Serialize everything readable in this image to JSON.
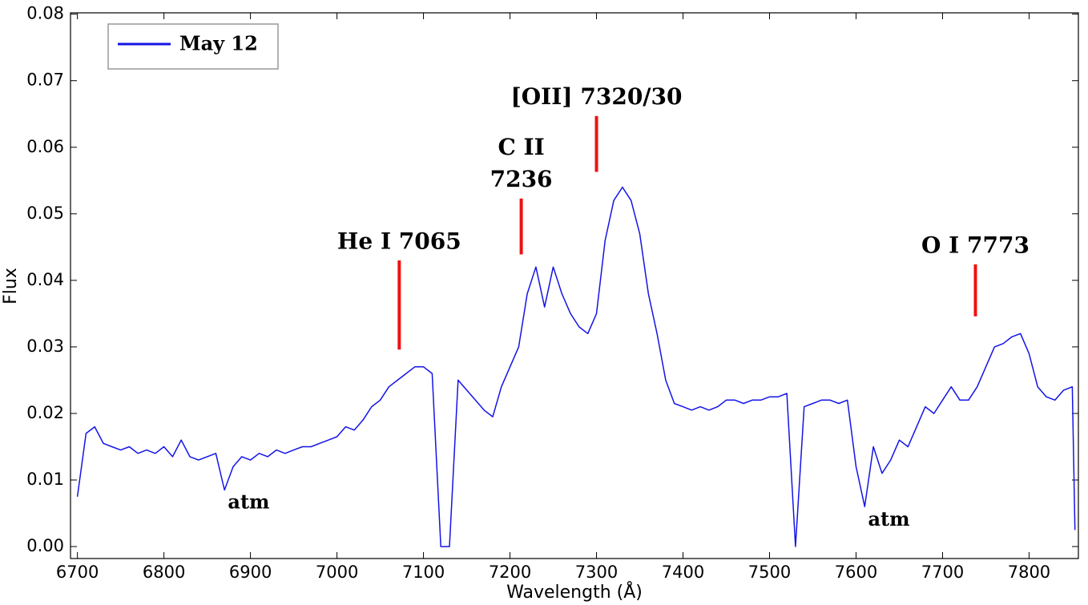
{
  "chart_data": {
    "type": "line",
    "xlabel": "Wavelength (Å)",
    "ylabel": "Flux",
    "xlim": [
      6692,
      7857
    ],
    "ylim": [
      -0.0018,
      0.0802
    ],
    "xticks": [
      6700,
      6800,
      6900,
      7000,
      7100,
      7200,
      7300,
      7400,
      7500,
      7600,
      7700,
      7800
    ],
    "yticks": [
      {
        "value": 0,
        "label": "0.00"
      },
      {
        "value": 0.01,
        "label": "0.01"
      },
      {
        "value": 0.02,
        "label": "0.02"
      },
      {
        "value": 0.03,
        "label": "0.03"
      },
      {
        "value": 0.04,
        "label": "0.04"
      },
      {
        "value": 0.05,
        "label": "0.05"
      },
      {
        "value": 0.06,
        "label": "0.06"
      },
      {
        "value": 0.07,
        "label": "0.07"
      },
      {
        "value": 0.08,
        "label": "0.08"
      }
    ],
    "grid": false,
    "legend": "upper left",
    "x": [
      6700,
      6710,
      6720,
      6730,
      6740,
      6750,
      6760,
      6770,
      6780,
      6790,
      6800,
      6810,
      6820,
      6830,
      6840,
      6850,
      6860,
      6870,
      6880,
      6890,
      6900,
      6910,
      6920,
      6930,
      6940,
      6950,
      6960,
      6970,
      6980,
      6990,
      7000,
      7010,
      7020,
      7030,
      7040,
      7050,
      7060,
      7070,
      7080,
      7090,
      7100,
      7110,
      7120,
      7130,
      7140,
      7150,
      7160,
      7170,
      7180,
      7190,
      7200,
      7210,
      7220,
      7230,
      7240,
      7250,
      7260,
      7270,
      7280,
      7290,
      7300,
      7310,
      7320,
      7330,
      7340,
      7350,
      7360,
      7370,
      7380,
      7390,
      7400,
      7410,
      7420,
      7430,
      7440,
      7450,
      7460,
      7470,
      7480,
      7490,
      7500,
      7510,
      7520,
      7530,
      7540,
      7550,
      7560,
      7570,
      7580,
      7590,
      7600,
      7610,
      7620,
      7630,
      7640,
      7650,
      7660,
      7670,
      7680,
      7690,
      7700,
      7710,
      7720,
      7730,
      7740,
      7750,
      7760,
      7770,
      7780,
      7790,
      7800,
      7810,
      7820,
      7830,
      7840,
      7850,
      7853
    ],
    "series": [
      {
        "name": "May 12",
        "color": "#1414e6",
        "values": [
          0.0075,
          0.017,
          0.018,
          0.0155,
          0.015,
          0.0145,
          0.015,
          0.014,
          0.0145,
          0.014,
          0.015,
          0.0135,
          0.016,
          0.0135,
          0.013,
          0.0135,
          0.014,
          0.0085,
          0.012,
          0.0135,
          0.013,
          0.014,
          0.0135,
          0.0145,
          0.014,
          0.0145,
          0.015,
          0.015,
          0.0155,
          0.016,
          0.0165,
          0.018,
          0.0175,
          0.019,
          0.021,
          0.022,
          0.024,
          0.025,
          0.026,
          0.027,
          0.027,
          0.026,
          0.0,
          0.0,
          0.025,
          0.0235,
          0.022,
          0.0205,
          0.0195,
          0.024,
          0.027,
          0.03,
          0.038,
          0.042,
          0.036,
          0.042,
          0.038,
          0.035,
          0.033,
          0.032,
          0.035,
          0.046,
          0.052,
          0.054,
          0.052,
          0.047,
          0.038,
          0.032,
          0.025,
          0.0215,
          0.021,
          0.0205,
          0.021,
          0.0205,
          0.021,
          0.022,
          0.022,
          0.0215,
          0.022,
          0.022,
          0.0225,
          0.0225,
          0.023,
          0.0,
          0.021,
          0.0215,
          0.022,
          0.022,
          0.0215,
          0.022,
          0.012,
          0.006,
          0.015,
          0.011,
          0.013,
          0.016,
          0.015,
          0.018,
          0.021,
          0.02,
          0.022,
          0.024,
          0.022,
          0.022,
          0.024,
          0.027,
          0.03,
          0.0305,
          0.0315,
          0.032,
          0.029,
          0.024,
          0.0225,
          0.022,
          0.0235,
          0.024,
          0.0025
        ]
      }
    ],
    "annotations": [
      {
        "text": "He I 7065",
        "x": 7072,
        "ymin": 0.0296,
        "ymax": 0.043,
        "color": "#ee1111"
      },
      {
        "text": [
          "C II",
          "7236"
        ],
        "x": 7213,
        "ymin": 0.0439,
        "ymax": 0.0523,
        "color": "#ee1111"
      },
      {
        "text": "[OII] 7320/30",
        "x": 7300,
        "ymin": 0.0563,
        "ymax": 0.0647,
        "color": "#ee1111"
      },
      {
        "text": "O I 7773",
        "x": 7738,
        "ymin": 0.0346,
        "ymax": 0.0424,
        "color": "#ee1111"
      },
      {
        "text": "atm",
        "x": 6898,
        "y": 0.0065
      },
      {
        "text": "atm",
        "x": 7638,
        "y": 0.0039
      }
    ]
  }
}
